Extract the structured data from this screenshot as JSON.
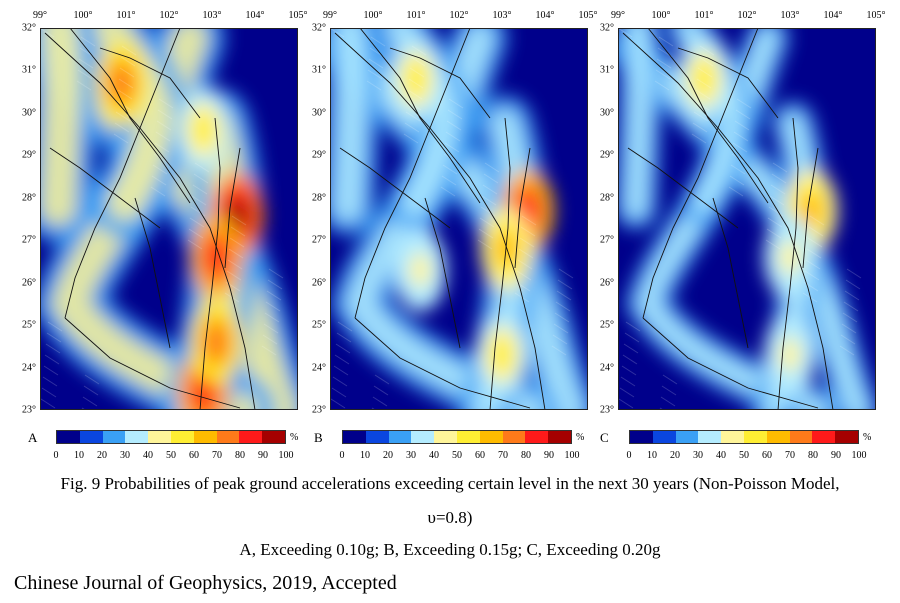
{
  "figure": {
    "caption_line1": "Fig. 9 Probabilities of peak ground accelerations exceeding certain level in the next 30 years (Non-Poisson Model,",
    "caption_line2": "υ=0.8)",
    "caption_line3": "A, Exceeding 0.10g; B, Exceeding 0.15g; C, Exceeding 0.20g",
    "journal": "Chinese Journal of Geophysics, 2019, Accepted"
  },
  "chart_data": [
    {
      "type": "heatmap",
      "panel": "A",
      "description_hidden": false,
      "x_tick_labels": [
        "99°",
        "100°",
        "101°",
        "102°",
        "103°",
        "104°",
        "105°"
      ],
      "y_tick_labels": [
        "32°",
        "31°",
        "30°",
        "29°",
        "28°",
        "27°",
        "26°",
        "25°",
        "24°",
        "23°"
      ],
      "xlim": [
        99,
        105
      ],
      "ylim": [
        23,
        32
      ],
      "hotspots": [
        {
          "lon": 103.6,
          "lat": 27.6,
          "value": 90
        },
        {
          "lon": 103.1,
          "lat": 26.6,
          "value": 80
        },
        {
          "lon": 100.9,
          "lat": 30.7,
          "value": 70
        },
        {
          "lon": 102.8,
          "lat": 23.4,
          "value": 85
        },
        {
          "lon": 103.1,
          "lat": 24.6,
          "value": 75
        },
        {
          "lon": 102.8,
          "lat": 29.6,
          "value": 55
        }
      ]
    },
    {
      "type": "heatmap",
      "panel": "B",
      "x_tick_labels": [
        "99°",
        "100°",
        "101°",
        "102°",
        "103°",
        "104°",
        "105°"
      ],
      "y_tick_labels": [
        "32°",
        "31°",
        "30°",
        "29°",
        "28°",
        "27°",
        "26°",
        "25°",
        "24°",
        "23°"
      ],
      "xlim": [
        99,
        105
      ],
      "ylim": [
        23,
        32
      ],
      "hotspots": [
        {
          "lon": 103.6,
          "lat": 27.7,
          "value": 80
        },
        {
          "lon": 103.1,
          "lat": 26.8,
          "value": 65
        },
        {
          "lon": 101.0,
          "lat": 30.8,
          "value": 55
        },
        {
          "lon": 103.0,
          "lat": 24.3,
          "value": 50
        },
        {
          "lon": 101.1,
          "lat": 26.3,
          "value": 45
        }
      ]
    },
    {
      "type": "heatmap",
      "panel": "C",
      "x_tick_labels": [
        "99°",
        "100°",
        "101°",
        "102°",
        "103°",
        "104°",
        "105°"
      ],
      "y_tick_labels": [
        "32°",
        "31°",
        "30°",
        "29°",
        "28°",
        "27°",
        "26°",
        "25°",
        "24°",
        "23°"
      ],
      "xlim": [
        99,
        105
      ],
      "ylim": [
        23,
        32
      ],
      "hotspots": [
        {
          "lon": 103.5,
          "lat": 27.7,
          "value": 60
        },
        {
          "lon": 101.0,
          "lat": 30.8,
          "value": 50
        },
        {
          "lon": 103.0,
          "lat": 26.6,
          "value": 45
        },
        {
          "lon": 103.0,
          "lat": 24.3,
          "value": 40
        }
      ]
    }
  ],
  "colorbar": {
    "unit": "%",
    "ticks": [
      "0",
      "10",
      "20",
      "30",
      "40",
      "50",
      "60",
      "70",
      "80",
      "90",
      "100"
    ],
    "colors": [
      "#00008b",
      "#0a46e0",
      "#3aa0f5",
      "#b4ecff",
      "#fff59a",
      "#ffee33",
      "#ffbb00",
      "#ff7a1a",
      "#ff1a1a",
      "#a50000"
    ]
  }
}
